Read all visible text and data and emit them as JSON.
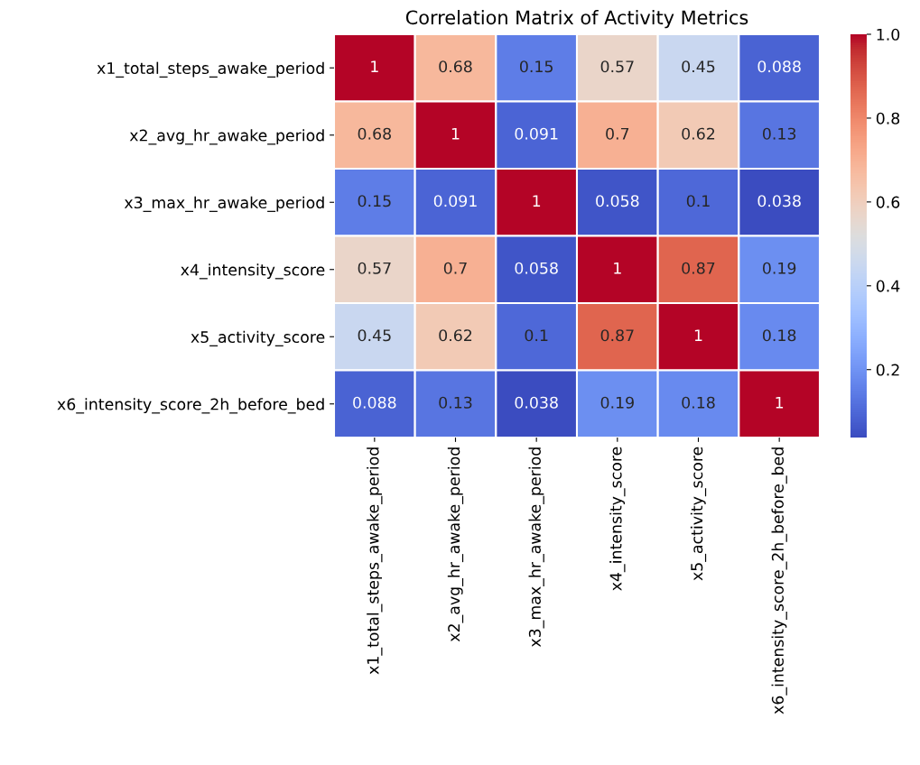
{
  "chart_data": {
    "type": "heatmap",
    "title": "Correlation Matrix of Activity Metrics",
    "categories": [
      "x1_total_steps_awake_period",
      "x2_avg_hr_awake_period",
      "x3_max_hr_awake_period",
      "x4_intensity_score",
      "x5_activity_score",
      "x6_intensity_score_2h_before_bed"
    ],
    "y_categories": [
      "x1_total_steps_awake_period",
      "x2_avg_hr_awake_period",
      "x3_max_hr_awake_period",
      "x4_intensity_score",
      "x5_activity_score",
      "x6_intensity_score_2h_before_bed"
    ],
    "cells": [
      [
        1,
        0.68,
        0.15,
        0.57,
        0.45,
        0.088
      ],
      [
        0.68,
        1,
        0.091,
        0.7,
        0.62,
        0.13
      ],
      [
        0.15,
        0.091,
        1,
        0.058,
        0.1,
        0.038
      ],
      [
        0.57,
        0.7,
        0.058,
        1,
        0.87,
        0.19
      ],
      [
        0.45,
        0.62,
        0.1,
        0.87,
        1,
        0.18
      ],
      [
        0.088,
        0.13,
        0.038,
        0.19,
        0.18,
        1
      ]
    ],
    "clim": [
      0.038,
      1.0
    ],
    "cticks": [
      {
        "value": 0.2,
        "label": "0.2"
      },
      {
        "value": 0.4,
        "label": "0.4"
      },
      {
        "value": 0.6,
        "label": "0.6"
      },
      {
        "value": 0.8,
        "label": "0.8"
      },
      {
        "value": 1.0,
        "label": "1.0"
      }
    ],
    "data_labels": true
  }
}
